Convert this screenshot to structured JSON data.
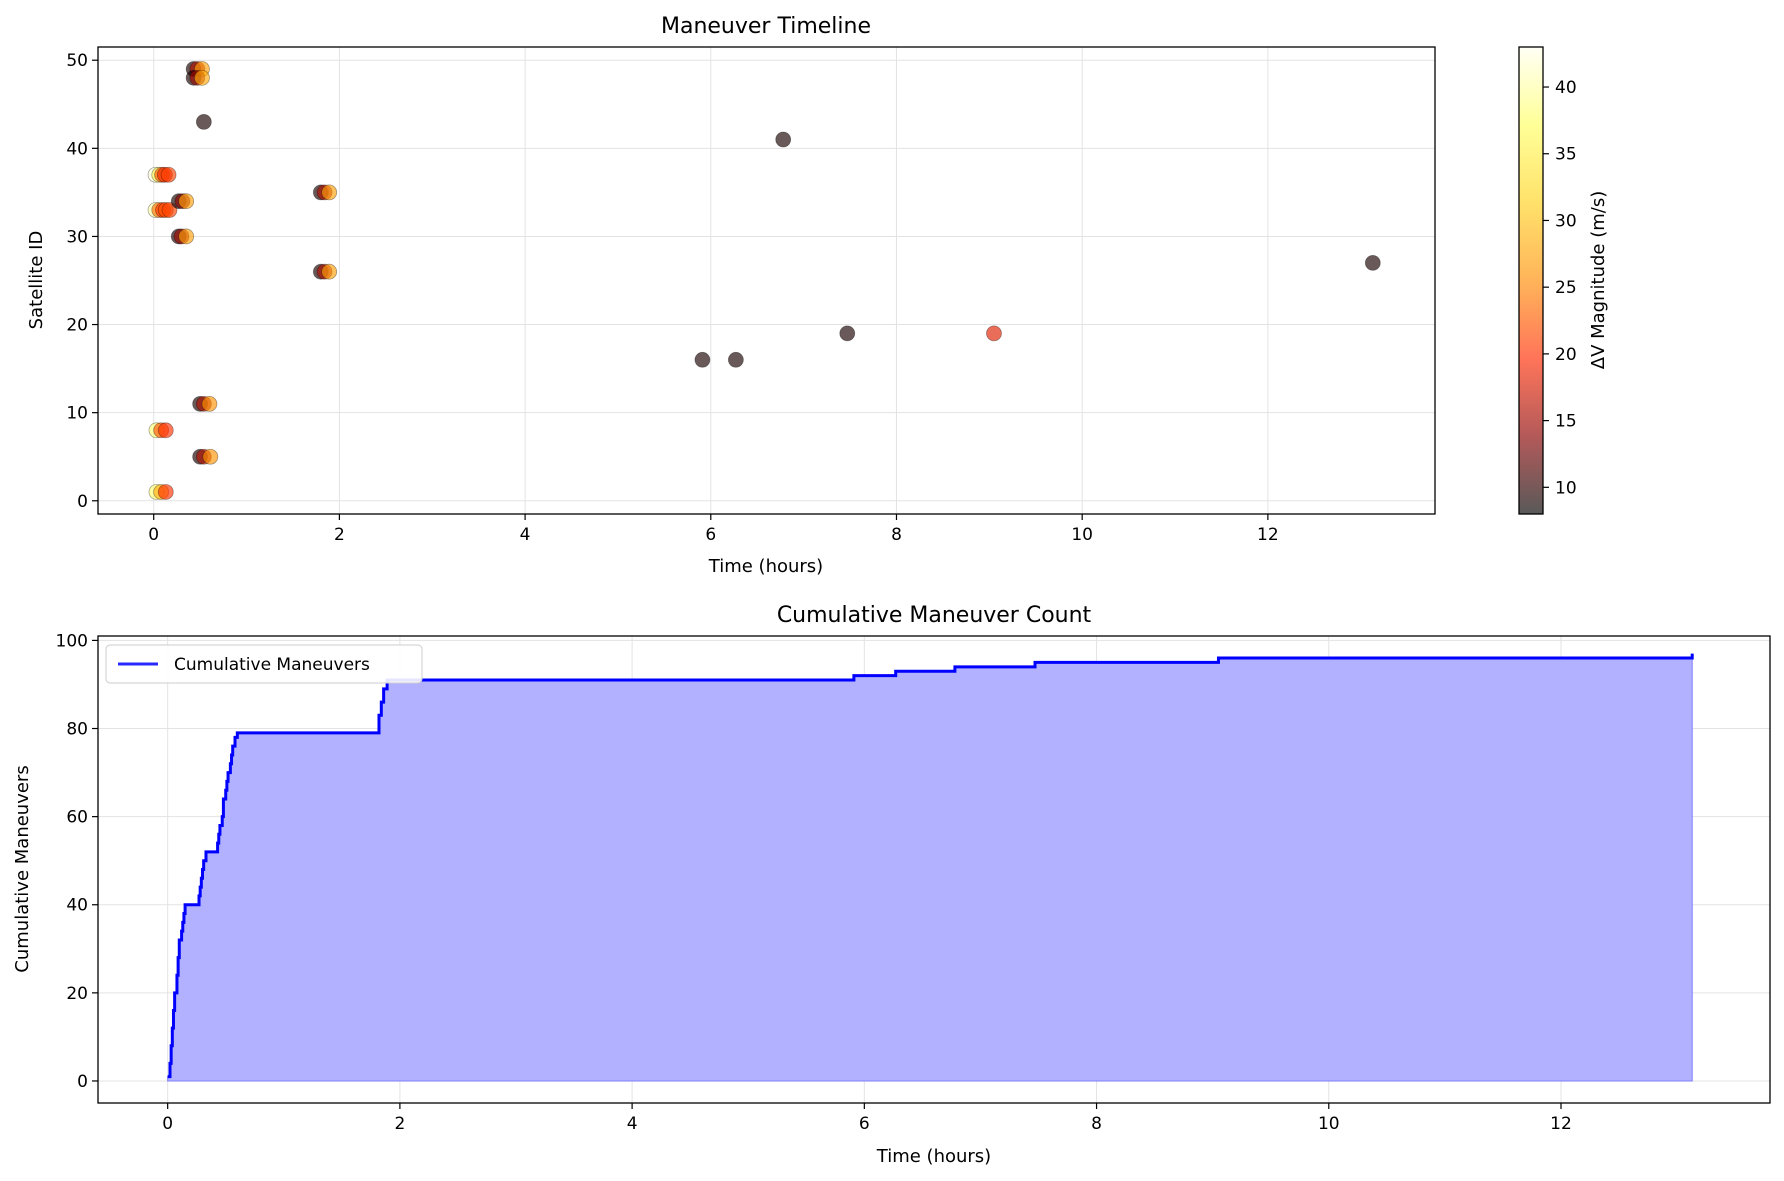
{
  "chart_data": [
    {
      "type": "scatter",
      "title": "Maneuver Timeline",
      "xlabel": "Time (hours)",
      "ylabel": "Satellite ID",
      "xlim": [
        -0.6,
        13.8
      ],
      "ylim": [
        -1.5,
        51.5
      ],
      "xticks": [
        0,
        2,
        4,
        6,
        8,
        10,
        12
      ],
      "yticks": [
        0,
        10,
        20,
        30,
        40,
        50
      ],
      "grid": true,
      "colorbar": {
        "label": "ΔV Magnitude (m/s)",
        "range": [
          8,
          43
        ],
        "ticks": [
          10,
          15,
          20,
          25,
          30,
          35,
          40
        ],
        "colormap": [
          "#000000",
          "#8b0000",
          "#ff2a00",
          "#ff8c00",
          "#ffd21a",
          "#ffff60",
          "#fffff0"
        ]
      },
      "points": [
        {
          "x": 0.02,
          "y": 37,
          "dv": 42
        },
        {
          "x": 0.06,
          "y": 37,
          "dv": 36
        },
        {
          "x": 0.09,
          "y": 37,
          "dv": 22
        },
        {
          "x": 0.12,
          "y": 37,
          "dv": 19
        },
        {
          "x": 0.16,
          "y": 37,
          "dv": 21
        },
        {
          "x": 0.02,
          "y": 33,
          "dv": 40
        },
        {
          "x": 0.06,
          "y": 33,
          "dv": 24
        },
        {
          "x": 0.1,
          "y": 33,
          "dv": 20
        },
        {
          "x": 0.13,
          "y": 33,
          "dv": 22
        },
        {
          "x": 0.17,
          "y": 33,
          "dv": 21
        },
        {
          "x": 0.27,
          "y": 34,
          "dv": 9
        },
        {
          "x": 0.31,
          "y": 34,
          "dv": 14
        },
        {
          "x": 0.35,
          "y": 34,
          "dv": 27
        },
        {
          "x": 0.27,
          "y": 30,
          "dv": 9
        },
        {
          "x": 0.3,
          "y": 30,
          "dv": 15
        },
        {
          "x": 0.35,
          "y": 30,
          "dv": 27
        },
        {
          "x": 0.43,
          "y": 49,
          "dv": 9
        },
        {
          "x": 0.47,
          "y": 49,
          "dv": 16
        },
        {
          "x": 0.52,
          "y": 49,
          "dv": 27
        },
        {
          "x": 0.43,
          "y": 48,
          "dv": 9
        },
        {
          "x": 0.47,
          "y": 48,
          "dv": 15
        },
        {
          "x": 0.52,
          "y": 48,
          "dv": 28
        },
        {
          "x": 0.54,
          "y": 43,
          "dv": 9
        },
        {
          "x": 0.03,
          "y": 8,
          "dv": 38
        },
        {
          "x": 0.08,
          "y": 8,
          "dv": 22
        },
        {
          "x": 0.13,
          "y": 8,
          "dv": 20
        },
        {
          "x": 0.03,
          "y": 1,
          "dv": 38
        },
        {
          "x": 0.08,
          "y": 1,
          "dv": 28
        },
        {
          "x": 0.13,
          "y": 1,
          "dv": 20
        },
        {
          "x": 0.5,
          "y": 11,
          "dv": 9
        },
        {
          "x": 0.54,
          "y": 11,
          "dv": 16
        },
        {
          "x": 0.6,
          "y": 11,
          "dv": 26
        },
        {
          "x": 0.5,
          "y": 5,
          "dv": 9
        },
        {
          "x": 0.54,
          "y": 5,
          "dv": 16
        },
        {
          "x": 0.61,
          "y": 5,
          "dv": 26
        },
        {
          "x": 1.8,
          "y": 35,
          "dv": 9
        },
        {
          "x": 1.84,
          "y": 35,
          "dv": 16
        },
        {
          "x": 1.89,
          "y": 35,
          "dv": 27
        },
        {
          "x": 1.8,
          "y": 26,
          "dv": 9
        },
        {
          "x": 1.84,
          "y": 26,
          "dv": 16
        },
        {
          "x": 1.89,
          "y": 26,
          "dv": 27
        },
        {
          "x": 5.91,
          "y": 16,
          "dv": 9
        },
        {
          "x": 6.27,
          "y": 16,
          "dv": 9
        },
        {
          "x": 6.78,
          "y": 41,
          "dv": 9
        },
        {
          "x": 7.47,
          "y": 19,
          "dv": 9
        },
        {
          "x": 9.05,
          "y": 19,
          "dv": 18
        },
        {
          "x": 13.13,
          "y": 27,
          "dv": 9
        }
      ]
    },
    {
      "type": "area",
      "title": "Cumulative Maneuver Count",
      "xlabel": "Time (hours)",
      "ylabel": "Cumulative Maneuvers",
      "xlim": [
        -0.6,
        13.8
      ],
      "ylim": [
        -5,
        101
      ],
      "xticks": [
        0,
        2,
        4,
        6,
        8,
        10,
        12
      ],
      "yticks": [
        0,
        20,
        40,
        60,
        80,
        100
      ],
      "grid": true,
      "legend": "upper-left",
      "series": [
        {
          "name": "Cumulative Maneuvers",
          "color": "#0000ff",
          "fill": "#b1b1ff",
          "step": true,
          "x": [
            0,
            0.02,
            0.03,
            0.04,
            0.05,
            0.06,
            0.08,
            0.09,
            0.1,
            0.12,
            0.13,
            0.14,
            0.15,
            0.16,
            0.17,
            0.27,
            0.28,
            0.29,
            0.3,
            0.31,
            0.33,
            0.35,
            0.43,
            0.44,
            0.45,
            0.47,
            0.48,
            0.5,
            0.51,
            0.52,
            0.54,
            0.55,
            0.56,
            0.58,
            0.6,
            1.8,
            1.82,
            1.84,
            1.86,
            1.89,
            5.91,
            6.27,
            6.78,
            7.47,
            9.05,
            13.13
          ],
          "y": [
            1,
            4,
            8,
            12,
            16,
            20,
            24,
            28,
            32,
            34,
            36,
            38,
            40,
            40,
            40,
            42,
            44,
            46,
            48,
            50,
            52,
            52,
            54,
            56,
            58,
            60,
            64,
            66,
            68,
            70,
            72,
            74,
            76,
            78,
            79,
            79,
            83,
            86,
            89,
            91,
            92,
            93,
            94,
            95,
            96,
            97
          ]
        }
      ]
    }
  ]
}
